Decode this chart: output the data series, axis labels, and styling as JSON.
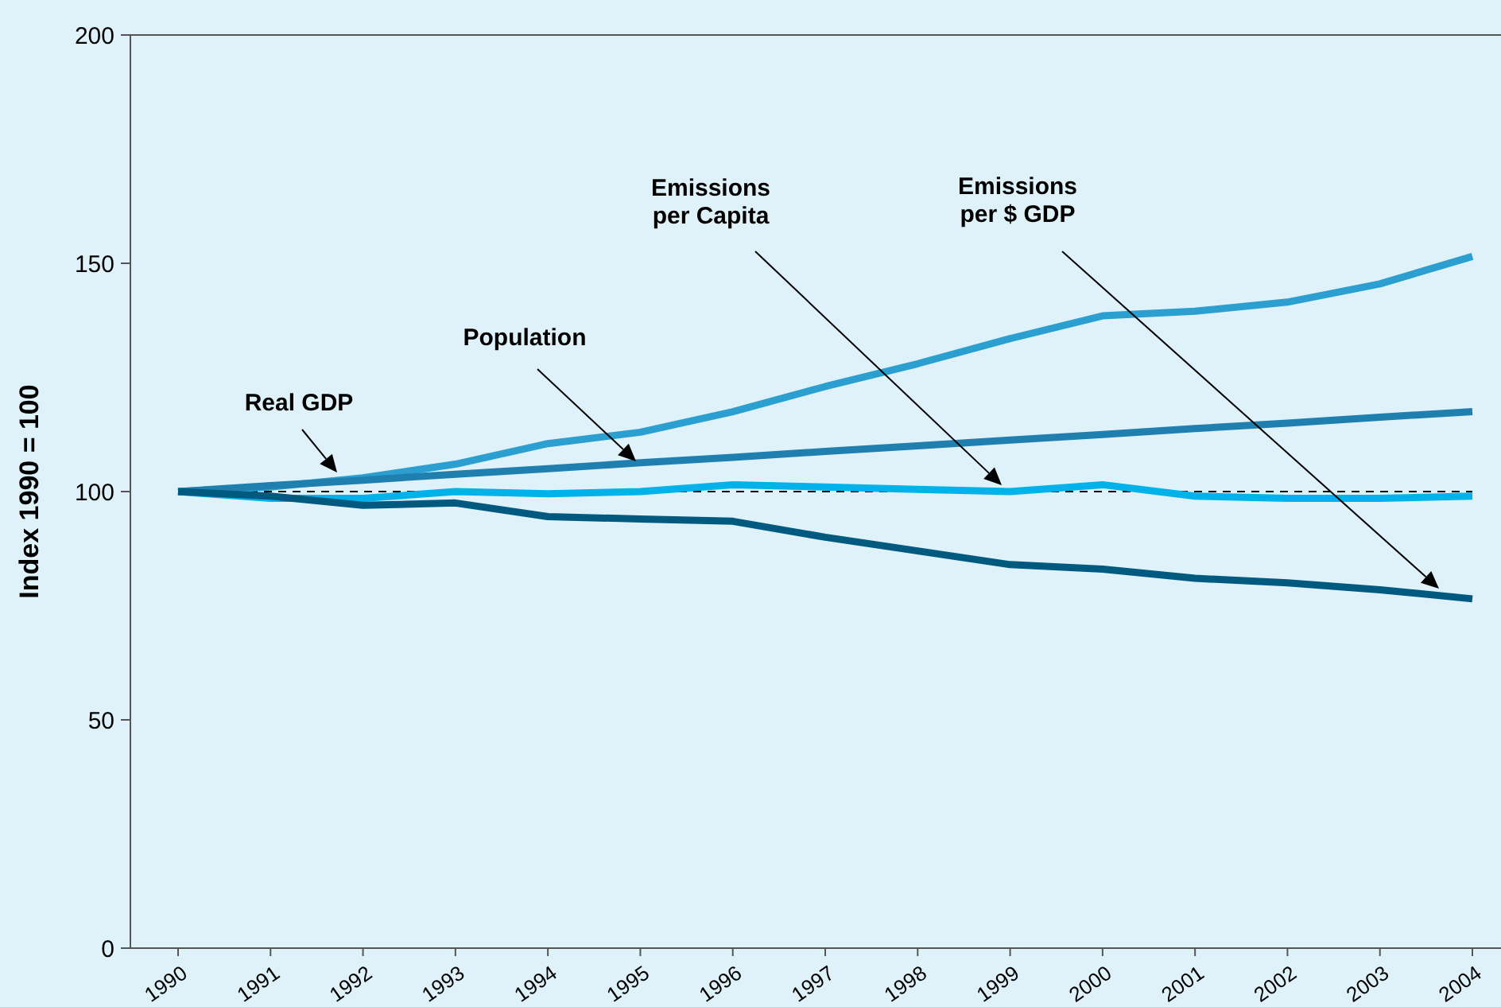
{
  "chart_data": {
    "type": "line",
    "ylabel": "Index 1990 = 100",
    "x": [
      1990,
      1991,
      1992,
      1993,
      1994,
      1995,
      1996,
      1997,
      1998,
      1999,
      2000,
      2001,
      2002,
      2003,
      2004
    ],
    "xlim": [
      1990,
      2004
    ],
    "xticks": [
      1990,
      1991,
      1992,
      1993,
      1994,
      1995,
      1996,
      1997,
      1998,
      1999,
      2000,
      2001,
      2002,
      2003,
      2004
    ],
    "ylim": [
      0,
      200
    ],
    "yticks": [
      0,
      50,
      100,
      150,
      200
    ],
    "grid": false,
    "marker": "none",
    "line_style": "solid",
    "series": [
      {
        "color": "#2a9fd0",
        "values": [
          100,
          101,
          103,
          106,
          110.5,
          113,
          117.5,
          123,
          128,
          133.5,
          138.5,
          139.5,
          141.5,
          145.5,
          151.5
        ]
      },
      {
        "color": "#1f7fae",
        "values": [
          100,
          101.3,
          102.5,
          103.8,
          105,
          106.3,
          107.5,
          108.8,
          110,
          111.3,
          112.5,
          113.8,
          115,
          116.3,
          117.5
        ]
      },
      {
        "color": "#00b2ea",
        "values": [
          100,
          98.5,
          98.5,
          100,
          99.5,
          100,
          101.5,
          101,
          100.5,
          100,
          101.5,
          99,
          98.5,
          98.5,
          99
        ]
      },
      {
        "color": "#005a80",
        "values": [
          100,
          99,
          97,
          97.5,
          94.5,
          94,
          93.5,
          90,
          87,
          84,
          83,
          81,
          80,
          78.5,
          76.5
        ]
      }
    ],
    "ref_lines": [
      {
        "axis": "y",
        "value": 100,
        "color": "#000000",
        "line_style": "dashed"
      }
    ],
    "annotations": [
      "Real GDP",
      "Population",
      "Emissions\nper Capita",
      "Emissions\nper $ GDP"
    ]
  }
}
